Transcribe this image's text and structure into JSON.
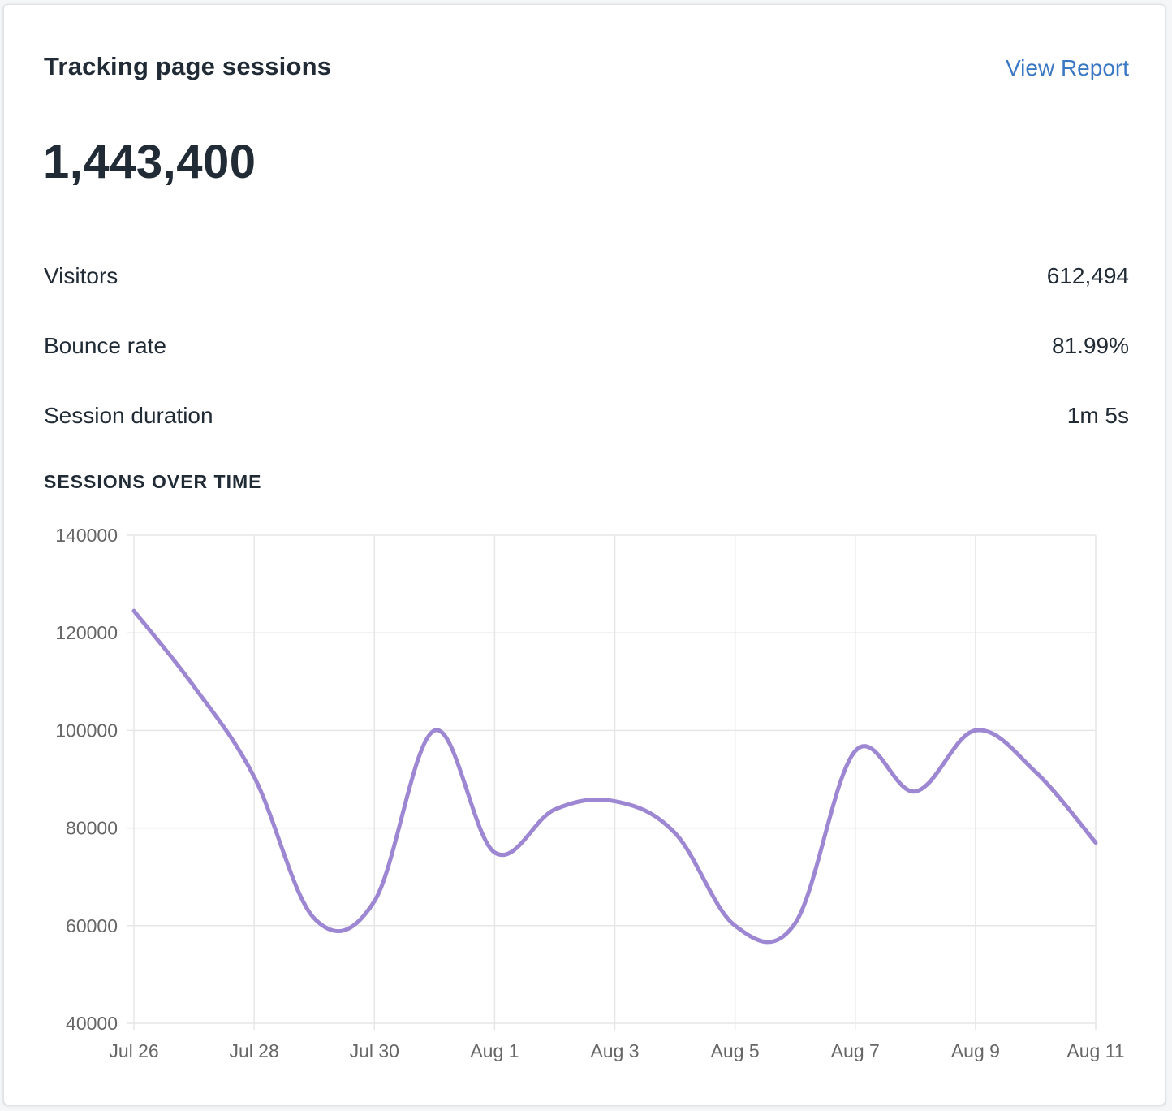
{
  "card": {
    "title": "Tracking page sessions",
    "link_label": "View Report",
    "total": "1,443,400",
    "metrics": [
      {
        "label": "Visitors",
        "value": "612,494"
      },
      {
        "label": "Bounce rate",
        "value": "81.99%"
      },
      {
        "label": "Session duration",
        "value": "1m 5s"
      }
    ],
    "section_heading": "SESSIONS OVER TIME"
  },
  "colors": {
    "line": "#9d87d2",
    "grid": "#e6e6e6",
    "link": "#3a78c4"
  },
  "chart_data": {
    "type": "line",
    "title": "SESSIONS OVER TIME",
    "xlabel": "",
    "ylabel": "",
    "x": [
      "Jul 26",
      "Jul 27",
      "Jul 28",
      "Jul 29",
      "Jul 30",
      "Jul 31",
      "Aug 1",
      "Aug 2",
      "Aug 3",
      "Aug 4",
      "Aug 5",
      "Aug 6",
      "Aug 7",
      "Aug 8",
      "Aug 9",
      "Aug 10",
      "Aug 11"
    ],
    "x_tick_labels": [
      "Jul 26",
      "Jul 28",
      "Jul 30",
      "Aug 1",
      "Aug 3",
      "Aug 5",
      "Aug 7",
      "Aug 9",
      "Aug 11"
    ],
    "series": [
      {
        "values": [
          124500,
          109000,
          90500,
          61500,
          65000,
          100000,
          75000,
          83800,
          85500,
          79000,
          60000,
          60500,
          95800,
          87500,
          100000,
          91500,
          77000
        ]
      }
    ],
    "ylim": [
      40000,
      140000
    ],
    "y_ticks": [
      40000,
      60000,
      80000,
      100000,
      120000,
      140000
    ],
    "grid": true,
    "legend": "none"
  }
}
